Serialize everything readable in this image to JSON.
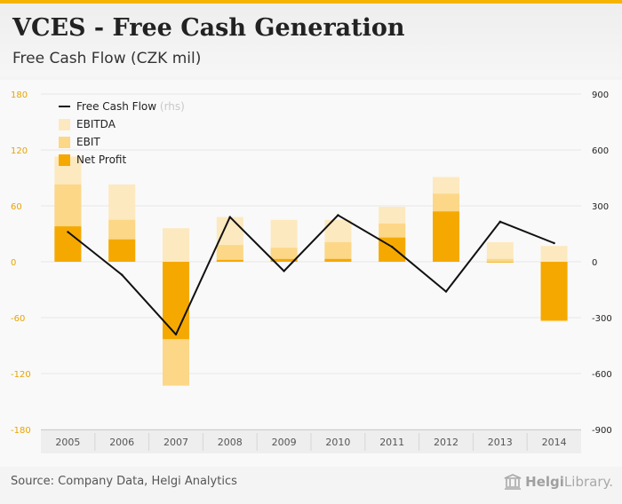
{
  "header": {
    "title": "VCES - Free Cash Generation",
    "subtitle": "Free Cash Flow (CZK mil)"
  },
  "footer": {
    "source": "Source: Company Data, Helgi Analytics",
    "logo_brand": "Helgi",
    "logo_rest": "Library."
  },
  "chart_data": {
    "type": "bar",
    "categories": [
      "2005",
      "2006",
      "2007",
      "2008",
      "2009",
      "2010",
      "2011",
      "2012",
      "2013",
      "2014"
    ],
    "series": [
      {
        "name": "EBITDA",
        "axis": "left",
        "color": "#fde9bf",
        "values": [
          113,
          83,
          36,
          48,
          45,
          45,
          59,
          91,
          21,
          17
        ]
      },
      {
        "name": "EBIT",
        "axis": "left",
        "color": "#fcd787",
        "values": [
          83,
          45,
          -133,
          18,
          15,
          21,
          41,
          73,
          3,
          -64
        ]
      },
      {
        "name": "Net Profit",
        "axis": "left",
        "color": "#f5a900",
        "values": [
          38,
          24,
          -83,
          2,
          3,
          3,
          26,
          54,
          0,
          -63
        ]
      },
      {
        "name": "Free Cash Flow",
        "axis": "right",
        "color": "#111111",
        "values": [
          160,
          -70,
          -390,
          240,
          -50,
          250,
          80,
          -160,
          215,
          100
        ]
      }
    ],
    "y_left": {
      "min": -180,
      "max": 180,
      "ticks": [
        180,
        120,
        60,
        0,
        -60,
        -120,
        -180
      ],
      "tick_labels": [
        "180",
        "120",
        "60",
        "0",
        "-60",
        "-120",
        "-180"
      ]
    },
    "y_right": {
      "min": -900,
      "max": 900,
      "ticks": [
        900,
        600,
        300,
        0,
        -300,
        -600,
        -900
      ],
      "tick_labels": [
        "900",
        "600",
        "300",
        "0",
        "-300",
        "-600",
        "-900"
      ]
    },
    "legend": {
      "placement": "top-left",
      "items": [
        {
          "label": "Free Cash Flow",
          "suffix": "(rhs)",
          "kind": "line",
          "color": "#111111"
        },
        {
          "label": "EBITDA",
          "kind": "box",
          "color": "#fde9bf"
        },
        {
          "label": "EBIT",
          "kind": "box",
          "color": "#fcd787"
        },
        {
          "label": "Net Profit",
          "kind": "box",
          "color": "#f5a900"
        }
      ]
    },
    "colors": {
      "left_axis": "#e9a400",
      "right_axis": "#222222",
      "grid": "#e6e6e6",
      "line": "#111111"
    }
  }
}
